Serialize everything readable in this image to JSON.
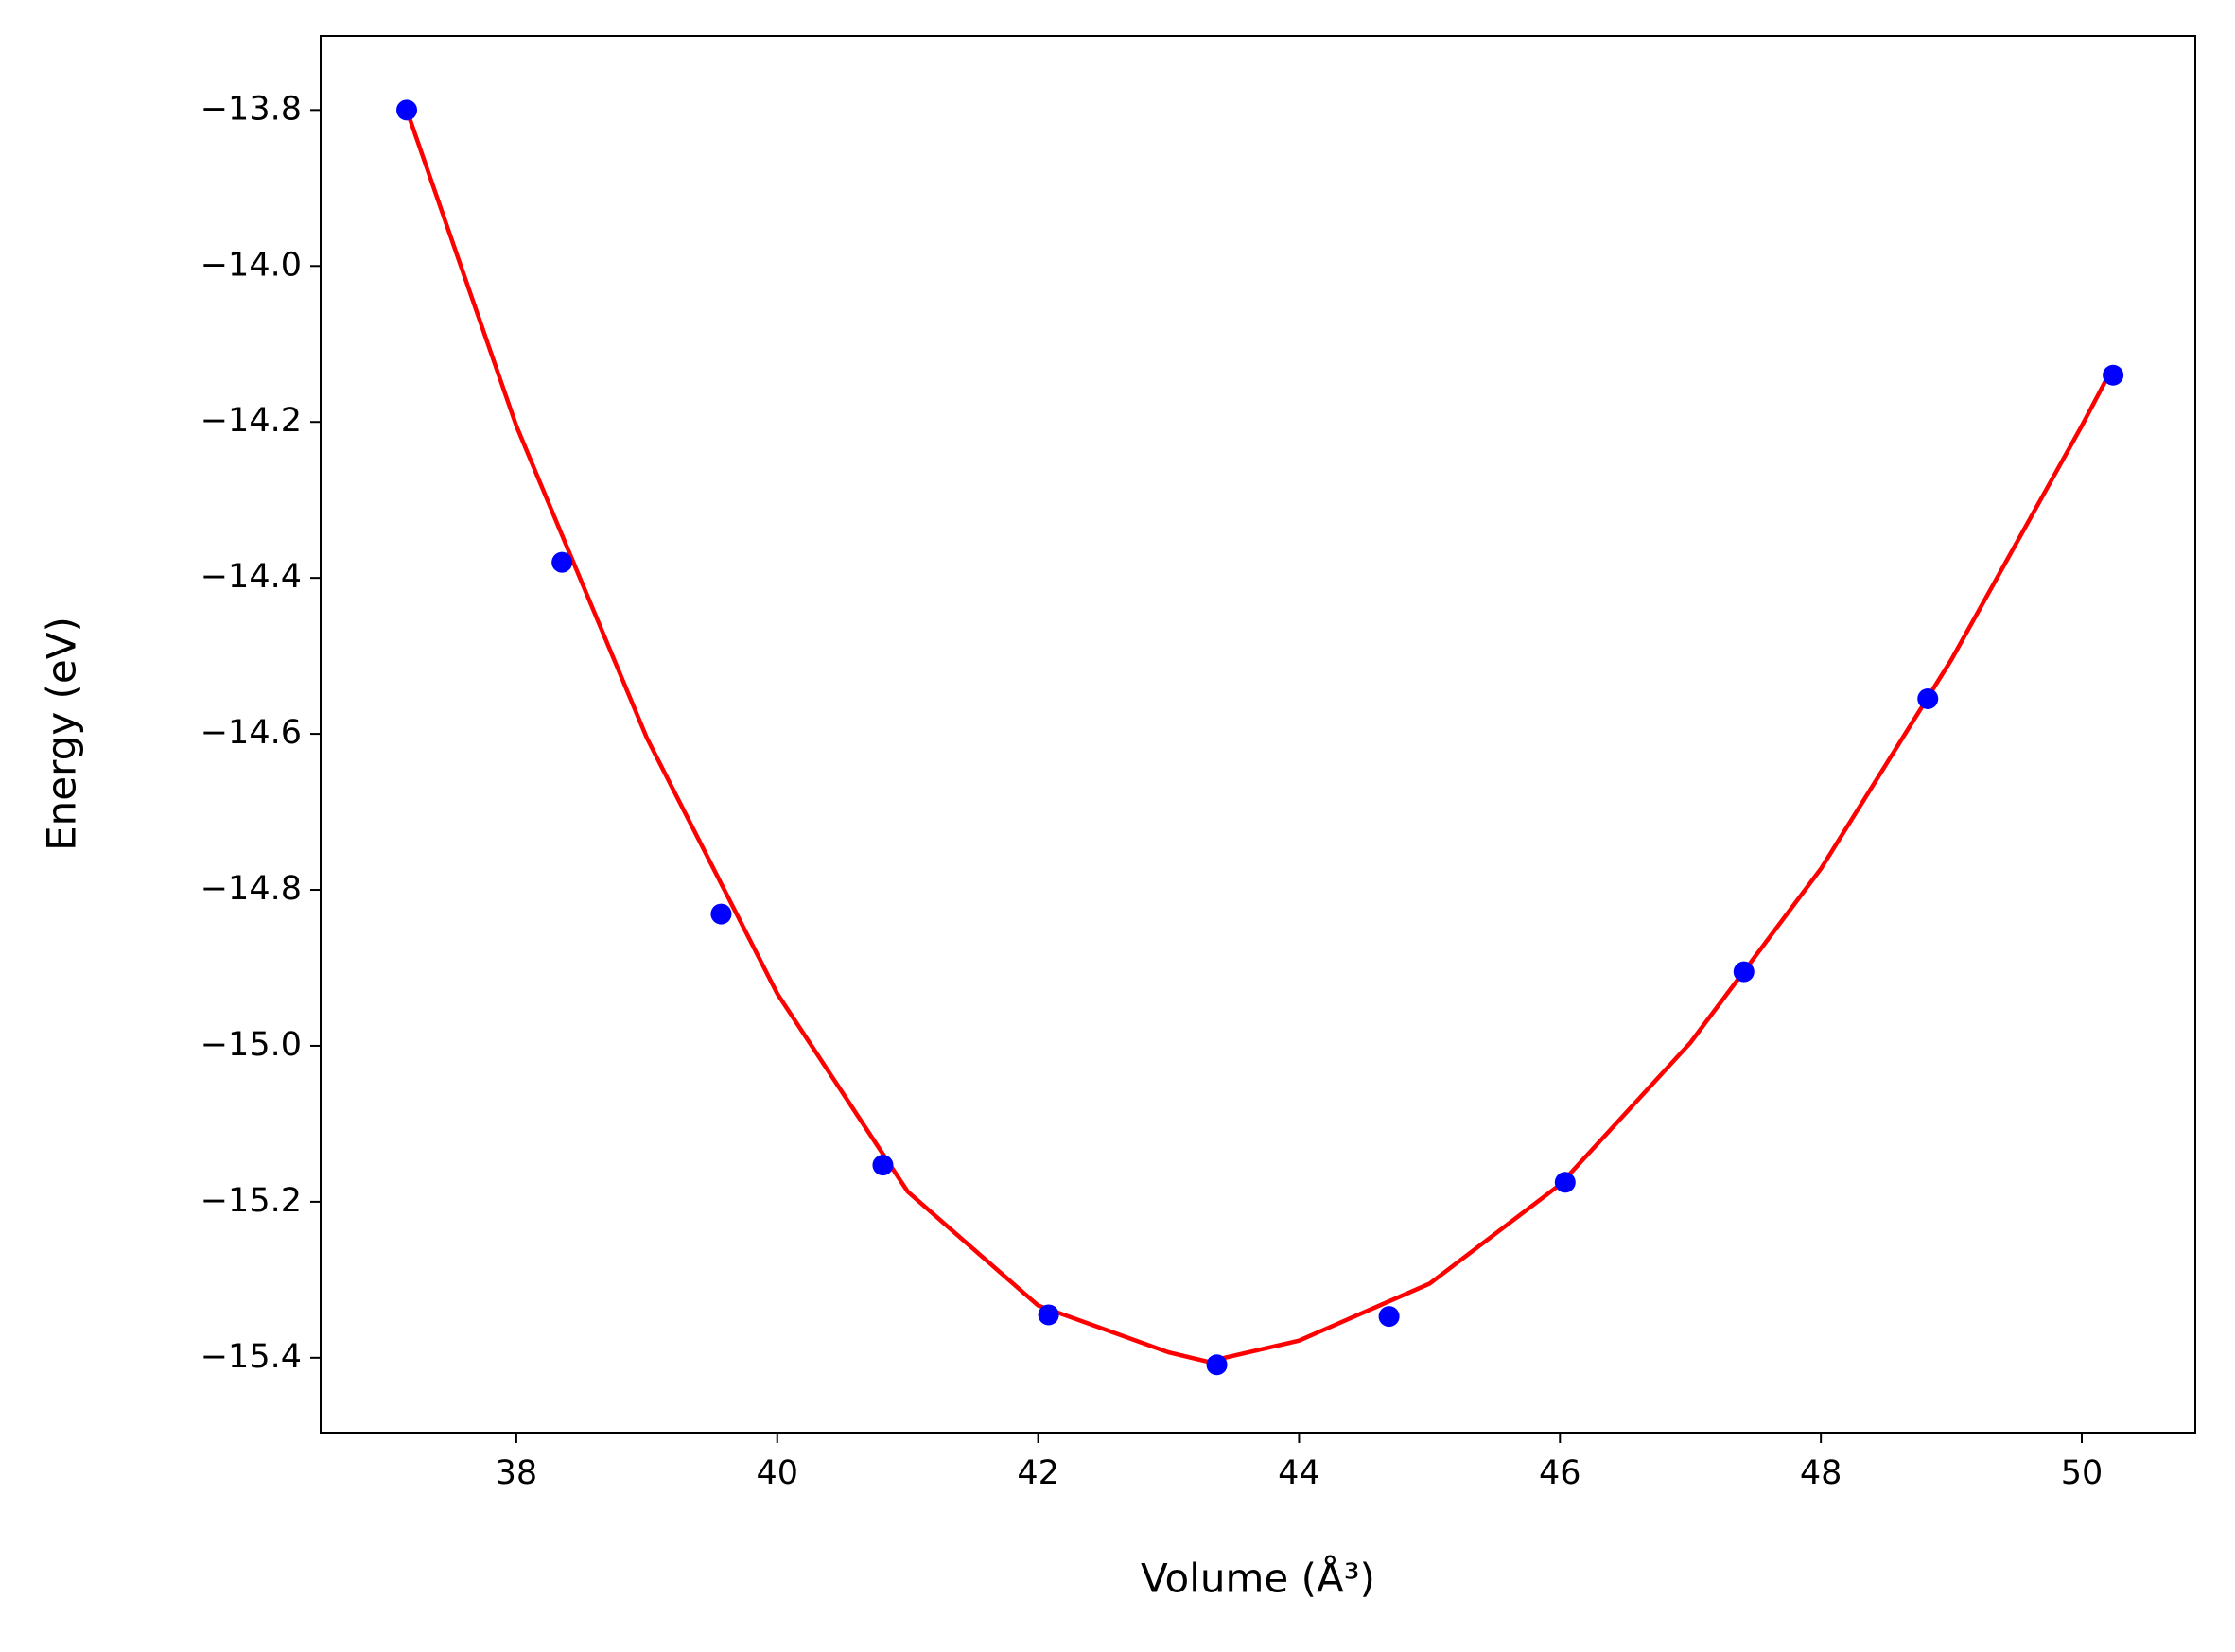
{
  "chart_data": {
    "type": "scatter",
    "xlabel": "Volume (Å³)",
    "ylabel": "Energy (eV)",
    "xlim": [
      36.5,
      50.87
    ],
    "ylim": [
      -15.496,
      -13.705
    ],
    "xticks": [
      38,
      40,
      42,
      44,
      46,
      48,
      50
    ],
    "yticks": [
      {
        "value": -13.8,
        "label": "−13.8"
      },
      {
        "value": -14.0,
        "label": "−14.0"
      },
      {
        "value": -14.2,
        "label": "−14.2"
      },
      {
        "value": -14.4,
        "label": "−14.4"
      },
      {
        "value": -14.6,
        "label": "−14.6"
      },
      {
        "value": -14.8,
        "label": "−14.8"
      },
      {
        "value": -15.0,
        "label": "−15.0"
      },
      {
        "value": -15.2,
        "label": "−15.2"
      },
      {
        "value": -15.4,
        "label": "−15.4"
      }
    ],
    "grid": false,
    "series": [
      {
        "type": "line",
        "color": "#ff0000",
        "x": [
          37.16,
          38,
          39,
          40,
          41,
          42,
          43,
          43.3,
          44,
          45,
          46,
          47,
          48,
          49,
          50,
          50.24
        ],
        "values": [
          -13.8,
          -14.205,
          -14.605,
          -14.933,
          -15.187,
          -15.333,
          -15.393,
          -15.405,
          -15.378,
          -15.305,
          -15.178,
          -14.996,
          -14.773,
          -14.505,
          -14.205,
          -14.129
        ]
      },
      {
        "type": "scatter",
        "color": "#0000ff",
        "x": [
          37.16,
          38.35,
          39.57,
          40.81,
          42.08,
          43.37,
          44.69,
          46.04,
          47.41,
          48.82,
          50.24
        ],
        "values": [
          -13.8,
          -14.38,
          -14.831,
          -15.153,
          -15.345,
          -15.409,
          -15.347,
          -15.175,
          -14.905,
          -14.555,
          -14.14
        ]
      }
    ]
  }
}
